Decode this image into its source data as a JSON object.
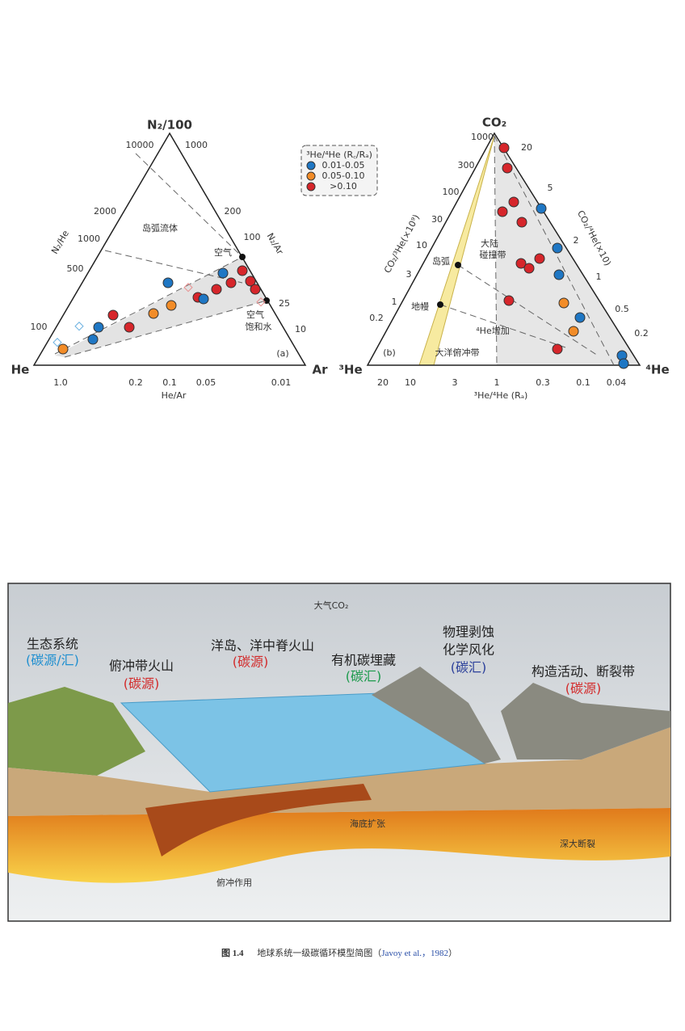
{
  "figure_a": {
    "apex": "N₂/100",
    "left_corner": "He",
    "right_corner": "Ar",
    "left_axis_label": "N₂/He",
    "right_axis_label": "N₂/Ar",
    "bottom_axis_label": "He/Ar",
    "left_ticks": [
      "10000",
      "2000",
      "1000",
      "500",
      "100"
    ],
    "right_ticks": [
      "1000",
      "200",
      "100",
      "25",
      "10"
    ],
    "bottom_ticks": [
      "1.0",
      "0.2",
      "0.1",
      "0.05",
      "0.01"
    ],
    "annotations": [
      "岛弧流体",
      "空气",
      "空气",
      "饱和水"
    ],
    "panel": "(a)"
  },
  "legend": {
    "title": "³He/⁴He (R꜀/Rₐ)",
    "items": [
      "0.01-0.05",
      "0.05-0.10",
      ">0.10"
    ]
  },
  "figure_b": {
    "apex": "CO₂",
    "left_corner": "³He",
    "right_corner": "⁴He",
    "left_axis_label": "CO₂/³He(×10⁹)",
    "right_axis_label": "CO₂/⁴He(×10)",
    "bottom_axis_label": "³He/⁴He (Rₐ)",
    "left_ticks": [
      "1000",
      "300",
      "100",
      "30",
      "10",
      "3",
      "1",
      "0.2"
    ],
    "right_ticks": [
      "20",
      "5",
      "2",
      "1",
      "0.5",
      "0.2"
    ],
    "bottom_ticks": [
      "20",
      "10",
      "3",
      "1",
      "0.3",
      "0.1",
      "0.04"
    ],
    "annotations": [
      "大陆",
      "碰撞带",
      "岛弧",
      "地幔",
      "⁴He增加",
      "大洋俯冲带"
    ],
    "panel": "(b)"
  },
  "diagram": {
    "title": "大气CO₂",
    "labels": [
      "生态系统",
      "(碳源/汇)",
      "俯冲带火山",
      "(碳源)",
      "洋岛、洋中脊火山",
      "(碳源)",
      "有机碳埋藏",
      "(碳汇)",
      "物理剥蚀",
      "化学风化",
      "(碳汇)",
      "构造活动、断裂带",
      "(碳源)",
      "海底扩张",
      "深大断裂",
      "俯冲作用"
    ]
  },
  "caption": {
    "number": "图 1.4",
    "text": "地球系统一级碳循环模型简图（",
    "citation": "Javoy et al.，1982",
    "close": "）"
  }
}
